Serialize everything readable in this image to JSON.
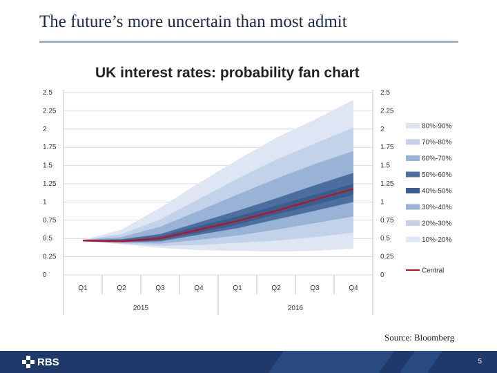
{
  "slide": {
    "title": "The future’s more uncertain than most admit",
    "source": "Source: Bloomberg",
    "page_number": "5",
    "logo_text": "RBS"
  },
  "colors": {
    "title": "#1b2a4a",
    "central_line": "#c0101e",
    "bands": [
      "#dde6f2",
      "#c2d2e8",
      "#99b3d6",
      "#4c6f9f",
      "#3a5d8f"
    ],
    "footer": "#1f3a6a"
  },
  "chart_data": {
    "type": "area",
    "title": "UK interest rates: probability fan chart",
    "quarters": [
      "Q1",
      "Q2",
      "Q3",
      "Q4",
      "Q1",
      "Q2",
      "Q3",
      "Q4"
    ],
    "years": [
      "2015",
      "2016"
    ],
    "ylim": [
      0,
      2.5
    ],
    "yticks": [
      "0",
      "0.25",
      "0.5",
      "0.75",
      "1",
      "1.25",
      "1.5",
      "1.75",
      "2",
      "2.25",
      "2.5"
    ],
    "x": [
      0,
      1,
      2,
      3,
      4,
      5,
      6,
      7
    ],
    "central": [
      0.47,
      0.46,
      0.5,
      0.62,
      0.74,
      0.88,
      1.03,
      1.18
    ],
    "bands": [
      {
        "name": "10%-20%",
        "lower": [
          0.46,
          0.42,
          0.37,
          0.34,
          0.33,
          0.32,
          0.33,
          0.36
        ],
        "upper": [
          0.48,
          0.62,
          0.92,
          1.26,
          1.58,
          1.88,
          2.13,
          2.4
        ]
      },
      {
        "name": "20%-30%",
        "lower": [
          0.46,
          0.43,
          0.4,
          0.41,
          0.44,
          0.47,
          0.52,
          0.58
        ],
        "upper": [
          0.48,
          0.56,
          0.76,
          1.04,
          1.32,
          1.58,
          1.8,
          2.02
        ]
      },
      {
        "name": "30%-40%",
        "lower": [
          0.46,
          0.44,
          0.43,
          0.48,
          0.54,
          0.62,
          0.71,
          0.8
        ],
        "upper": [
          0.48,
          0.52,
          0.66,
          0.88,
          1.1,
          1.32,
          1.52,
          1.7
        ]
      },
      {
        "name": "40%-50%",
        "lower": [
          0.46,
          0.45,
          0.46,
          0.55,
          0.64,
          0.76,
          0.88,
          1.0
        ],
        "upper": [
          0.48,
          0.49,
          0.56,
          0.72,
          0.88,
          1.05,
          1.23,
          1.4
        ]
      },
      {
        "name": "50%-60%",
        "lower": [
          0.46,
          0.45,
          0.48,
          0.58,
          0.69,
          0.83,
          0.96,
          1.1
        ],
        "upper": [
          0.48,
          0.48,
          0.53,
          0.67,
          0.8,
          0.95,
          1.1,
          1.25
        ]
      }
    ],
    "legend": [
      {
        "label": "80%-90%",
        "color": "#dde6f2"
      },
      {
        "label": "70%-80%",
        "color": "#c2d2e8"
      },
      {
        "label": "60%-70%",
        "color": "#99b3d6"
      },
      {
        "label": "50%-60%",
        "color": "#4c6f9f"
      },
      {
        "label": "40%-50%",
        "color": "#3a5d8f"
      },
      {
        "label": "30%-40%",
        "color": "#99b3d6"
      },
      {
        "label": "20%-30%",
        "color": "#c2d2e8"
      },
      {
        "label": "10%-20%",
        "color": "#dde6f2"
      },
      {
        "label": "Central",
        "color": "#c0101e",
        "line": true
      }
    ]
  }
}
